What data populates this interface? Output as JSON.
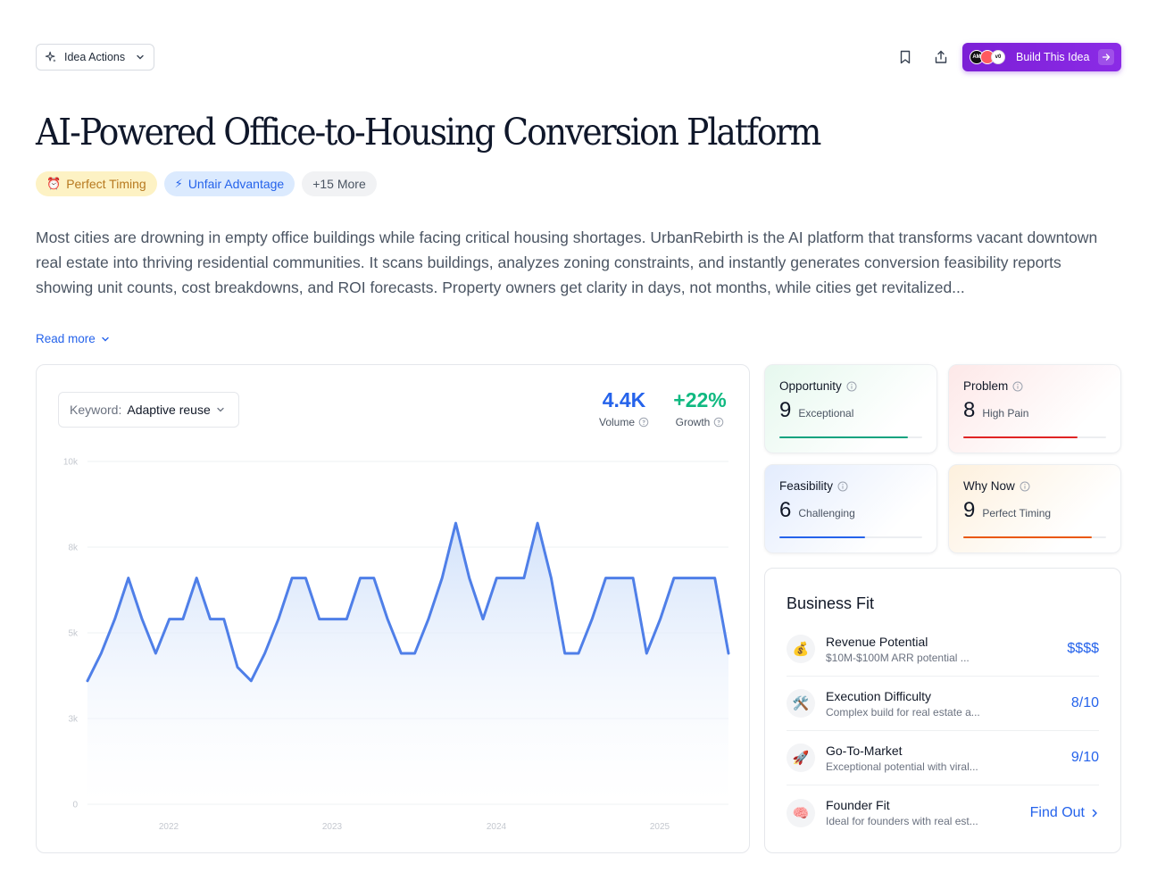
{
  "toolbar": {
    "idea_actions_label": "Idea Actions",
    "build_label": "Build This Idea",
    "logos": [
      "AM",
      "",
      "v0"
    ]
  },
  "title": "AI-Powered Office-to-Housing Conversion Platform",
  "tags": [
    {
      "emoji": "⏰",
      "label": "Perfect Timing"
    },
    {
      "emoji": "⚡",
      "label": "Unfair Advantage"
    },
    {
      "emoji": "",
      "label": "+15 More"
    }
  ],
  "description": "Most cities are drowning in empty office buildings while facing critical housing shortages. UrbanRebirth is the AI platform that transforms vacant downtown real estate into thriving residential communities. It scans buildings, analyzes zoning constraints, and instantly generates conversion feasibility reports showing unit counts, cost breakdowns, and ROI forecasts. Property owners get clarity in days, not months, while cities get revitalized...",
  "read_more": "Read more",
  "trend": {
    "keyword_label": "Keyword:",
    "keyword_value": "Adaptive reuse",
    "volume_value": "4.4K",
    "volume_label": "Volume",
    "growth_value": "+22%",
    "growth_label": "Growth"
  },
  "chart_data": {
    "type": "area",
    "y_ticks": [
      "0",
      "3k",
      "5k",
      "8k",
      "10k"
    ],
    "ylim": [
      0,
      10000
    ],
    "x_ticks": [
      "2022",
      "2023",
      "2024",
      "2025"
    ],
    "values": [
      3600,
      4400,
      5400,
      6600,
      5400,
      4400,
      5400,
      5400,
      6600,
      5400,
      5400,
      4000,
      3600,
      4400,
      5400,
      6600,
      6600,
      5400,
      5400,
      5400,
      6600,
      6600,
      5400,
      4400,
      4400,
      5400,
      6600,
      8200,
      6600,
      5400,
      6600,
      6600,
      6600,
      8200,
      6600,
      4400,
      4400,
      5400,
      6600,
      6600,
      6600,
      4400,
      5400,
      6600,
      6600,
      6600,
      6600,
      4400
    ],
    "line_color": "#4f7fe8",
    "fill_color": "#dbe7fb",
    "grid": true
  },
  "scores": [
    {
      "name": "Opportunity",
      "score": "9",
      "desc": "Exceptional",
      "value": 0.9,
      "color": "#10a37f"
    },
    {
      "name": "Problem",
      "score": "8",
      "desc": "High Pain",
      "value": 0.8,
      "color": "#e02424"
    },
    {
      "name": "Feasibility",
      "score": "6",
      "desc": "Challenging",
      "value": 0.6,
      "color": "#2563eb"
    },
    {
      "name": "Why Now",
      "score": "9",
      "desc": "Perfect Timing",
      "value": 0.9,
      "color": "#ea580c"
    }
  ],
  "business_fit": {
    "title": "Business Fit",
    "rows": [
      {
        "icon": "💰",
        "title": "Revenue Potential",
        "sub": "$10M-$100M ARR potential ...",
        "value": "$$$$"
      },
      {
        "icon": "🛠️",
        "title": "Execution Difficulty",
        "sub": "Complex build for real estate a...",
        "value": "8/10"
      },
      {
        "icon": "🚀",
        "title": "Go-To-Market",
        "sub": "Exceptional potential with viral...",
        "value": "9/10"
      },
      {
        "icon": "🧠",
        "title": "Founder Fit",
        "sub": "Ideal for founders with real est...",
        "value": "Find Out"
      }
    ]
  }
}
